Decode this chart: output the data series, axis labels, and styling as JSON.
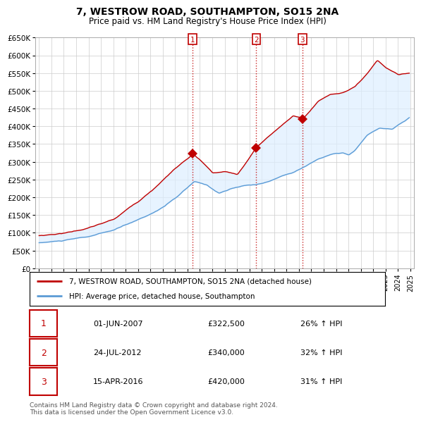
{
  "title": "7, WESTROW ROAD, SOUTHAMPTON, SO15 2NA",
  "subtitle": "Price paid vs. HM Land Registry's House Price Index (HPI)",
  "ylabel_ticks": [
    "£0",
    "£50K",
    "£100K",
    "£150K",
    "£200K",
    "£250K",
    "£300K",
    "£350K",
    "£400K",
    "£450K",
    "£500K",
    "£550K",
    "£600K",
    "£650K"
  ],
  "ytick_values": [
    0,
    50000,
    100000,
    150000,
    200000,
    250000,
    300000,
    350000,
    400000,
    450000,
    500000,
    550000,
    600000,
    650000
  ],
  "sale_years": [
    2007.42,
    2012.56,
    2016.29
  ],
  "sale_prices": [
    322500,
    340000,
    420000
  ],
  "sale_labels": [
    "1",
    "2",
    "3"
  ],
  "legend_line1": "7, WESTROW ROAD, SOUTHAMPTON, SO15 2NA (detached house)",
  "legend_line2": "HPI: Average price, detached house, Southampton",
  "table_data": [
    [
      "1",
      "01-JUN-2007",
      "£322,500",
      "26% ↑ HPI"
    ],
    [
      "2",
      "24-JUL-2012",
      "£340,000",
      "32% ↑ HPI"
    ],
    [
      "3",
      "15-APR-2016",
      "£420,000",
      "31% ↑ HPI"
    ]
  ],
  "footer": "Contains HM Land Registry data © Crown copyright and database right 2024.\nThis data is licensed under the Open Government Licence v3.0.",
  "hpi_color": "#5b9bd5",
  "price_color": "#c00000",
  "fill_color": "#ddeeff",
  "background_color": "#ffffff",
  "grid_color": "#cccccc"
}
